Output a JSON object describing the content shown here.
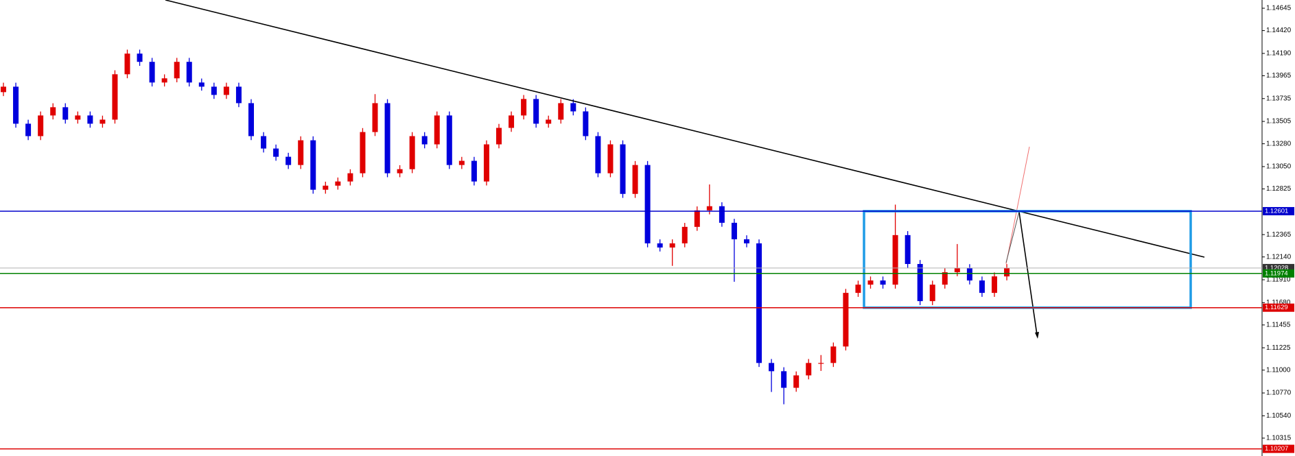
{
  "chart_data": {
    "type": "candlestick",
    "ylim": [
      1.10135,
      1.14728
    ],
    "yticks": [
      1.14645,
      {
        "value": 1.1442,
        "label": "1.14420"
      },
      {
        "value": 1.1419,
        "label": "1.14190"
      },
      1.13965,
      1.13735,
      1.13505,
      {
        "value": 1.1328,
        "label": "1.13280"
      },
      {
        "value": 1.1305,
        "label": "1.13050"
      },
      1.12825,
      1.12365,
      {
        "value": 1.1214,
        "label": "1.12140"
      },
      {
        "value": 1.1191,
        "label": "1.11910"
      },
      {
        "value": 1.1168,
        "label": "1.11680"
      },
      1.11455,
      1.11225,
      {
        "value": 1.11,
        "label": "1.11000"
      },
      {
        "value": 1.1077,
        "label": "1.10770"
      },
      {
        "value": 1.1054,
        "label": "1.10540"
      },
      1.10315
    ],
    "up_color": "#e00000",
    "down_color": "#0000dd",
    "open": [
      1.138,
      1.13855,
      1.13482,
      1.13357,
      1.13565,
      1.13648,
      1.13523,
      1.13565,
      1.13482,
      1.13523,
      1.1398,
      1.14188,
      1.14105,
      1.13897,
      1.13939,
      1.14105,
      1.13897,
      1.13855,
      1.13772,
      1.13855,
      1.13689,
      1.13357,
      1.13232,
      1.13149,
      1.13066,
      1.13315,
      1.12817,
      1.12858,
      1.129,
      1.12983,
      1.13398,
      1.13689,
      1.12983,
      1.13024,
      1.13357,
      1.13274,
      1.13565,
      1.13066,
      1.13108,
      1.129,
      1.13274,
      1.1344,
      1.13565,
      1.13731,
      1.13482,
      1.13523,
      1.13689,
      1.13606,
      1.13357,
      1.12983,
      1.13274,
      1.12775,
      1.13066,
      1.12277,
      1.12235,
      1.12277,
      1.12443,
      1.12609,
      1.12651,
      1.12484,
      1.12318,
      1.12277,
      1.11072,
      1.10989,
      1.10822,
      1.10947,
      1.11072,
      1.11072,
      1.11238,
      1.11778,
      1.11861,
      1.11903,
      1.11861,
      1.1236,
      1.12069,
      1.11695,
      1.11861,
      1.11986,
      1.12027,
      1.11903,
      1.11778,
      1.11944
    ],
    "high": [
      1.13895,
      1.13895,
      1.13522,
      1.13605,
      1.13688,
      1.13688,
      1.13605,
      1.13605,
      1.13563,
      1.1402,
      1.14228,
      1.14228,
      1.14145,
      1.13979,
      1.14145,
      1.14145,
      1.13937,
      1.13895,
      1.13895,
      1.13895,
      1.13729,
      1.13397,
      1.13272,
      1.13189,
      1.13355,
      1.13355,
      1.12898,
      1.1294,
      1.13023,
      1.13438,
      1.1378,
      1.13729,
      1.13064,
      1.13397,
      1.13397,
      1.13605,
      1.13605,
      1.13148,
      1.13148,
      1.13314,
      1.1348,
      1.13605,
      1.13771,
      1.13771,
      1.13563,
      1.13729,
      1.13729,
      1.13646,
      1.13397,
      1.13314,
      1.13314,
      1.13106,
      1.13106,
      1.12317,
      1.12317,
      1.12483,
      1.12649,
      1.1287,
      1.12691,
      1.12524,
      1.12358,
      1.12317,
      1.11112,
      1.11029,
      1.10987,
      1.11112,
      1.11152,
      1.11278,
      1.11818,
      1.11901,
      1.11943,
      1.11943,
      1.12667,
      1.124,
      1.12109,
      1.11901,
      1.12026,
      1.1227,
      1.12067,
      1.11943,
      1.11984,
      1.12068
    ],
    "low": [
      1.1376,
      1.13442,
      1.13317,
      1.13317,
      1.13525,
      1.13483,
      1.13483,
      1.13442,
      1.13442,
      1.13483,
      1.1394,
      1.14065,
      1.13857,
      1.13857,
      1.13899,
      1.13857,
      1.13815,
      1.13732,
      1.13732,
      1.13649,
      1.13317,
      1.13192,
      1.13109,
      1.13026,
      1.13026,
      1.12777,
      1.12777,
      1.12818,
      1.1286,
      1.12943,
      1.13358,
      1.12943,
      1.12943,
      1.12984,
      1.13234,
      1.13234,
      1.13026,
      1.13026,
      1.1286,
      1.1286,
      1.13234,
      1.134,
      1.13525,
      1.13442,
      1.13442,
      1.13483,
      1.13566,
      1.13317,
      1.12943,
      1.12943,
      1.12735,
      1.12735,
      1.12237,
      1.12195,
      1.1205,
      1.12237,
      1.12403,
      1.12569,
      1.12444,
      1.1189,
      1.12237,
      1.11032,
      1.1078,
      1.10656,
      1.10782,
      1.10907,
      1.10992,
      1.11032,
      1.11198,
      1.11738,
      1.11821,
      1.11821,
      1.11821,
      1.12029,
      1.11655,
      1.11655,
      1.11821,
      1.11946,
      1.11863,
      1.11738,
      1.11738,
      1.11904
    ],
    "close": [
      1.13855,
      1.13482,
      1.13357,
      1.13565,
      1.13648,
      1.13523,
      1.13565,
      1.13482,
      1.13523,
      1.1398,
      1.14188,
      1.14105,
      1.13897,
      1.13939,
      1.14105,
      1.13897,
      1.13855,
      1.13772,
      1.13855,
      1.13689,
      1.13357,
      1.13232,
      1.13149,
      1.13066,
      1.13315,
      1.12817,
      1.12858,
      1.129,
      1.12983,
      1.13398,
      1.13689,
      1.12983,
      1.13024,
      1.13357,
      1.13274,
      1.13565,
      1.13066,
      1.13108,
      1.129,
      1.13274,
      1.1344,
      1.13565,
      1.13731,
      1.13482,
      1.13523,
      1.13689,
      1.13606,
      1.13357,
      1.12983,
      1.13274,
      1.12775,
      1.13066,
      1.12277,
      1.12235,
      1.12277,
      1.12443,
      1.12609,
      1.12651,
      1.12484,
      1.12318,
      1.12277,
      1.11072,
      1.10989,
      1.10822,
      1.10947,
      1.11072,
      1.11072,
      1.11238,
      1.11778,
      1.11861,
      1.11903,
      1.11861,
      1.1236,
      1.12069,
      1.11695,
      1.11861,
      1.11986,
      1.12027,
      1.11903,
      1.11778,
      1.11944,
      1.12028
    ],
    "levels": [
      {
        "value": 1.12601,
        "color": "#0000cc"
      },
      {
        "value": 1.12028,
        "color": "#b0b0b0"
      },
      {
        "value": 1.11974,
        "color": "#008000"
      },
      {
        "value": 1.11629,
        "color": "#dd0000"
      },
      {
        "value": 1.10207,
        "color": "#dd0000"
      }
    ]
  }
}
